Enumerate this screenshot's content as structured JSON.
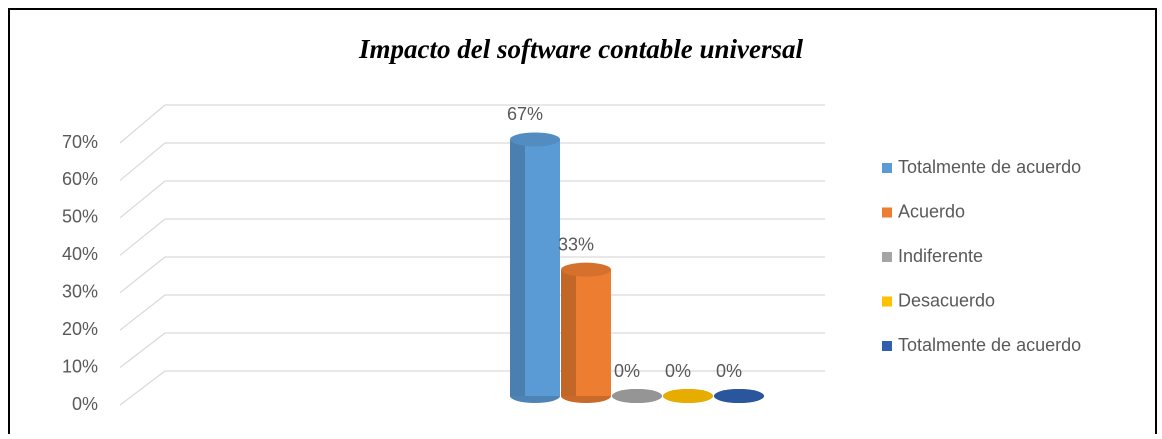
{
  "chart_data": {
    "type": "bar",
    "title": "Impacto del software contable universal",
    "categories": [
      null
    ],
    "series": [
      {
        "name": "Totalmente de acuerdo",
        "color": "#5b9bd5",
        "values": [
          67
        ],
        "value_labels": [
          "67%"
        ]
      },
      {
        "name": "Acuerdo",
        "color": "#ed7d31",
        "values": [
          33
        ],
        "value_labels": [
          "33%"
        ]
      },
      {
        "name": "Indiferente",
        "color": "#a5a5a5",
        "values": [
          0
        ],
        "value_labels": [
          "0%"
        ]
      },
      {
        "name": "Desacuerdo",
        "color": "#ffc000",
        "values": [
          0
        ],
        "value_labels": [
          "0%"
        ]
      },
      {
        "name": "Totalmente de acuerdo",
        "color": "#2f5fae",
        "values": [
          0
        ],
        "value_labels": [
          "0%"
        ]
      }
    ],
    "ylim": [
      0,
      70
    ],
    "yticks": [
      {
        "value": 0,
        "label": "0%"
      },
      {
        "value": 10,
        "label": "10%"
      },
      {
        "value": 20,
        "label": "20%"
      },
      {
        "value": 30,
        "label": "30%"
      },
      {
        "value": 40,
        "label": "40%"
      },
      {
        "value": 50,
        "label": "50%"
      },
      {
        "value": 60,
        "label": "60%"
      },
      {
        "value": 70,
        "label": "70%"
      }
    ],
    "grid": true,
    "legend": "right"
  }
}
